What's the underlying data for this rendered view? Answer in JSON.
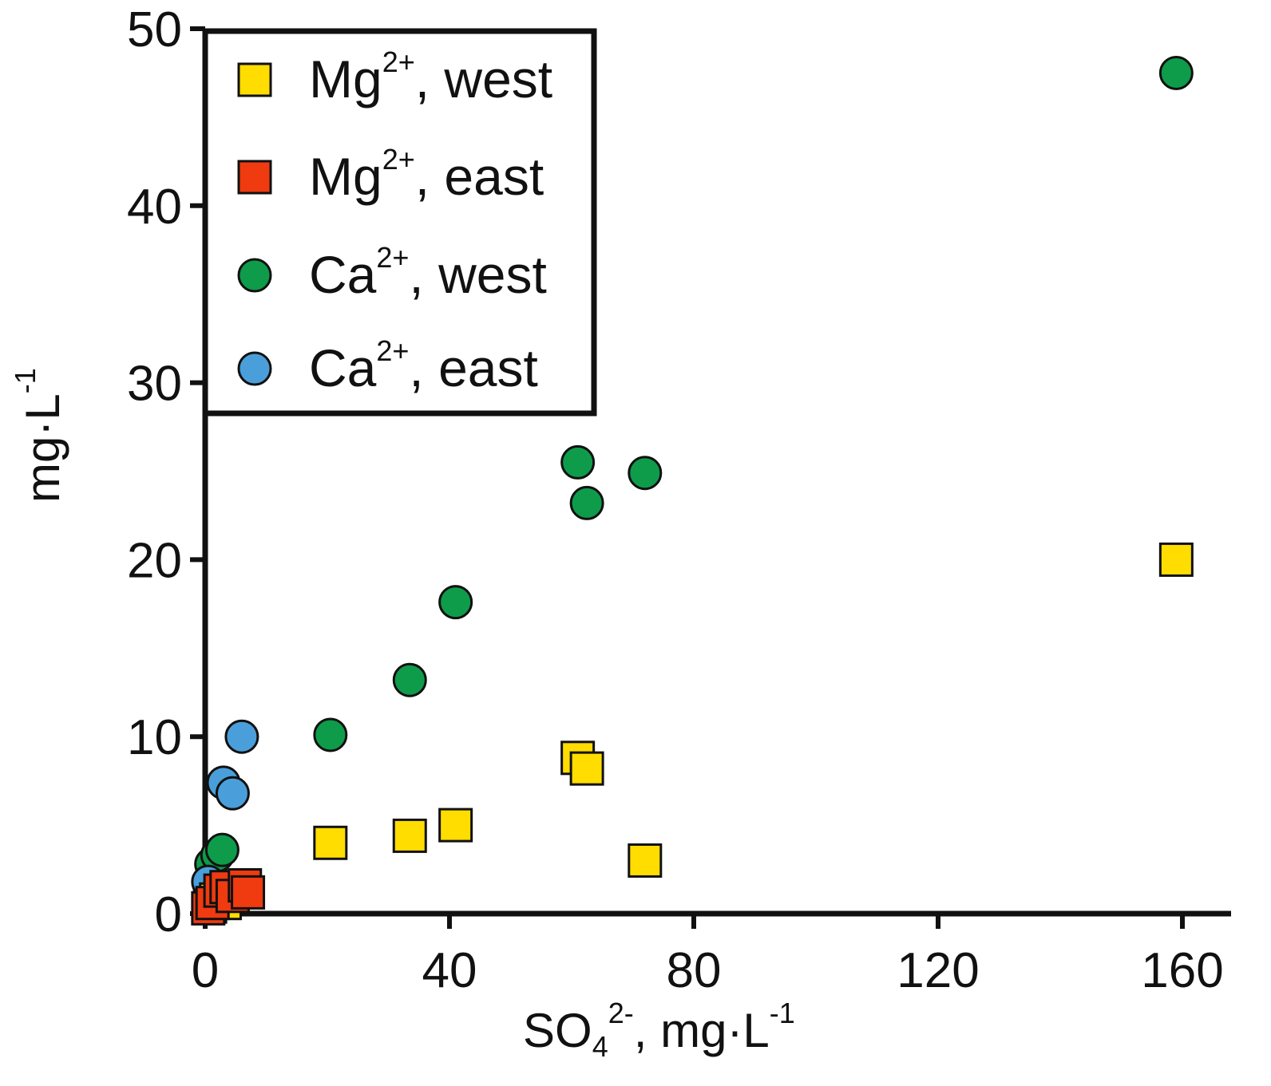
{
  "chart_data": {
    "type": "scatter",
    "title": "",
    "xlabel": {
      "base": "SO",
      "sub": "4",
      "sup": "2-",
      "rest": ", mg·L",
      "unit_sup": "-1"
    },
    "ylabel": {
      "base": "mg·L",
      "sup": "-1"
    },
    "xlim": [
      0,
      170
    ],
    "ylim": [
      0,
      50
    ],
    "xticks": [
      0,
      40,
      80,
      120,
      160
    ],
    "yticks": [
      0,
      10,
      20,
      30,
      40,
      50
    ],
    "xtick_labels": [
      "0",
      "40",
      "80",
      "120",
      "160"
    ],
    "ytick_labels": [
      "0",
      "10",
      "20",
      "30",
      "40",
      "50"
    ],
    "grid": false,
    "legend_position": "top-left",
    "series": [
      {
        "name": "Mg2+, west",
        "label_base": "Mg",
        "label_sup": "2+",
        "label_rest": ", west",
        "marker": "square",
        "color": "#FFDD00",
        "points": [
          [
            0.8,
            0.4
          ],
          [
            1.8,
            0.8
          ],
          [
            2.6,
            1.1
          ],
          [
            3.2,
            0.6
          ],
          [
            20.5,
            4.0
          ],
          [
            33.5,
            4.4
          ],
          [
            41,
            5.0
          ],
          [
            61,
            8.8
          ],
          [
            62.5,
            8.2
          ],
          [
            72,
            3.0
          ],
          [
            159,
            20.0
          ]
        ]
      },
      {
        "name": "Mg2+, east",
        "label_base": "Mg",
        "label_sup": "2+",
        "label_rest": ", east",
        "marker": "square",
        "color": "#F03A10",
        "points": [
          [
            0.5,
            0.3
          ],
          [
            1.2,
            0.6
          ],
          [
            2.5,
            1.3
          ],
          [
            3.5,
            1.5
          ],
          [
            4.5,
            1.0
          ],
          [
            6.5,
            1.6
          ],
          [
            7,
            1.2
          ]
        ]
      },
      {
        "name": "Ca2+, west",
        "label_base": "Ca",
        "label_sup": "2+",
        "label_rest": ", west",
        "marker": "circle",
        "color": "#0E9C4A",
        "points": [
          [
            1.0,
            2.8
          ],
          [
            2.0,
            3.3
          ],
          [
            2.8,
            3.6
          ],
          [
            20.5,
            10.1
          ],
          [
            33.5,
            13.2
          ],
          [
            41,
            17.6
          ],
          [
            61,
            25.5
          ],
          [
            62.5,
            23.2
          ],
          [
            72,
            24.9
          ],
          [
            159,
            47.5
          ]
        ]
      },
      {
        "name": "Ca2+, east",
        "label_base": "Ca",
        "label_sup": "2+",
        "label_rest": ", east",
        "marker": "circle",
        "color": "#4A9FDA",
        "points": [
          [
            0.5,
            1.8
          ],
          [
            3,
            7.4
          ],
          [
            4.5,
            6.8
          ],
          [
            6,
            10.0
          ]
        ]
      }
    ]
  }
}
